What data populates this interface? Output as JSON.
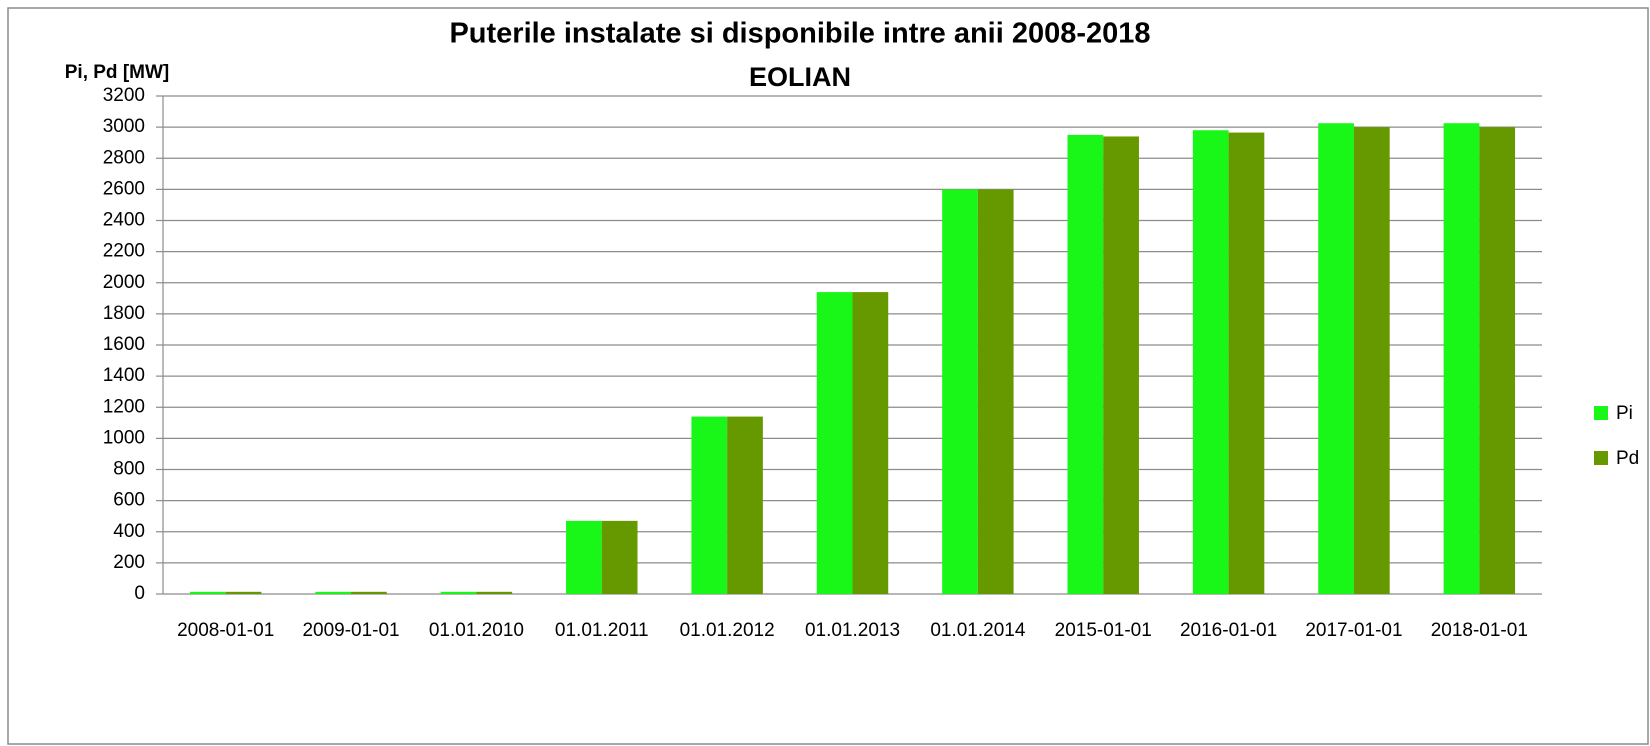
{
  "chart_data": {
    "type": "bar",
    "title": "Puterile instalate si disponibile intre anii 2008-2018",
    "subtitle": "EOLIAN",
    "y_label": "Pi, Pd [MW]",
    "categories": [
      "2008-01-01",
      "2009-01-01",
      "01.01.2010",
      "01.01.2011",
      "01.01.2012",
      "01.01.2013",
      "01.01.2014",
      "2015-01-01",
      "2016-01-01",
      "2017-01-01",
      "2018-01-01"
    ],
    "series": [
      {
        "name": "Pi",
        "color": "#19f719",
        "values": [
          14,
          14,
          14,
          470,
          1140,
          1940,
          2600,
          2950,
          2980,
          3025,
          3025
        ]
      },
      {
        "name": "Pd",
        "color": "#669900",
        "values": [
          14,
          14,
          14,
          470,
          1140,
          1940,
          2600,
          2940,
          2965,
          3000,
          3000
        ]
      }
    ],
    "ylim": [
      0,
      3200
    ],
    "yticks": [
      0,
      200,
      400,
      600,
      800,
      1000,
      1200,
      1400,
      1600,
      1800,
      2000,
      2200,
      2400,
      2600,
      2800,
      3000,
      3200
    ],
    "grid": true,
    "legend": "right"
  }
}
